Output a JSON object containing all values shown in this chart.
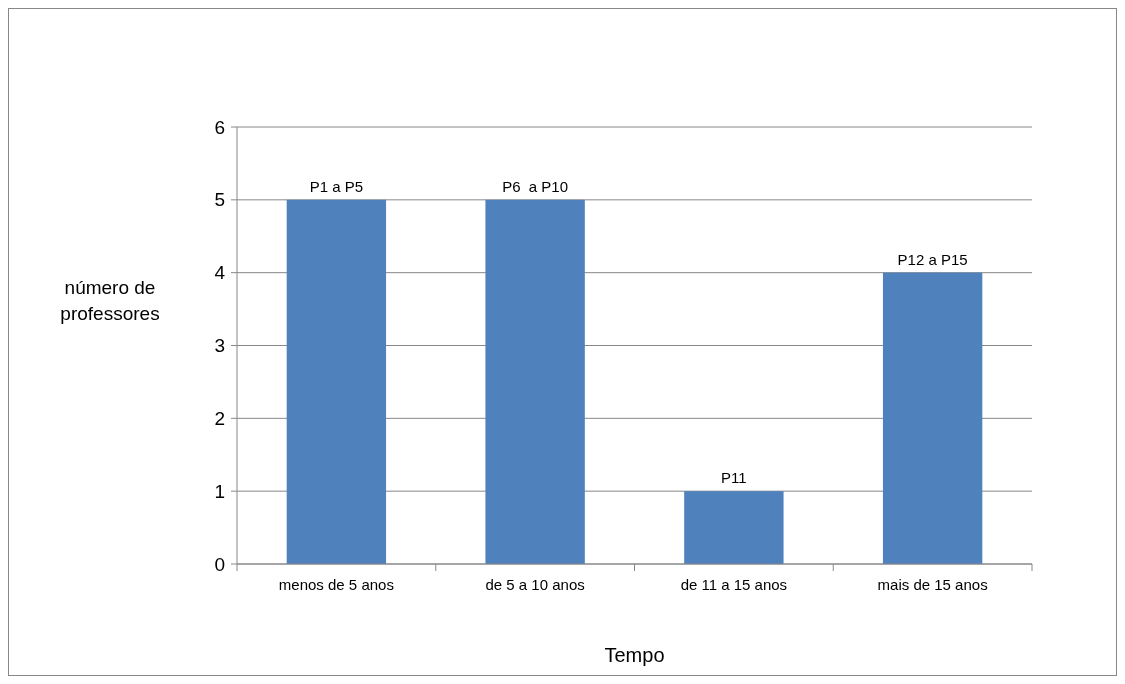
{
  "chart_data": {
    "type": "bar",
    "xlabel": "Tempo",
    "ylabel": "número de professores",
    "categories": [
      "menos de 5 anos",
      "de 5 a 10 anos",
      "de 11 a 15 anos",
      "mais de 15 anos"
    ],
    "values": [
      5,
      5,
      1,
      4
    ],
    "color": "#4f81bd",
    "value_labels": [
      "P1 a P5",
      "P6  a P10",
      "P11",
      "P12 a P15"
    ],
    "ylim": [
      0,
      6
    ],
    "yticks": [
      0,
      1,
      2,
      3,
      4,
      5,
      6
    ],
    "grid": "y"
  }
}
